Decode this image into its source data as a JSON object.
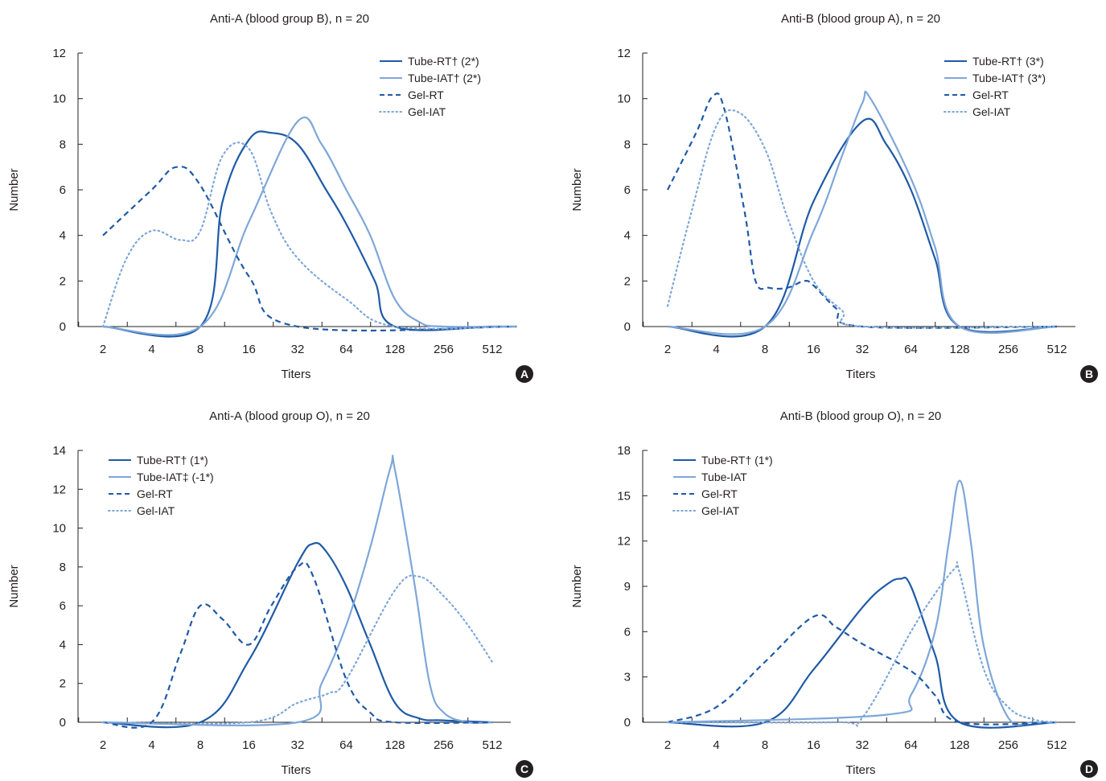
{
  "colors": {
    "dark_blue": "#1f5aa6",
    "light_blue": "#7ea7d8",
    "text": "#231f20",
    "badge": "#231f20"
  },
  "chart_data": [
    {
      "type": "line",
      "panel": "A",
      "title": "Anti-A (blood group B), n = 20",
      "xlabel": "Titers",
      "ylabel": "Number",
      "x_categories": [
        "2",
        "4",
        "8",
        "16",
        "32",
        "64",
        "128",
        "256",
        "512"
      ],
      "y_ticks": [
        "0",
        "2",
        "4",
        "6",
        "8",
        "10",
        "12"
      ],
      "ylim": [
        0,
        12
      ],
      "legend_position": "top-right",
      "series": [
        {
          "name": "Tube-RT† (2*)",
          "color": "#1f5aa6",
          "dash": "solid",
          "points": [
            [
              2,
              0
            ],
            [
              8,
              0
            ],
            [
              11,
              5.5
            ],
            [
              16,
              8.2
            ],
            [
              22,
              8.5
            ],
            [
              32,
              8
            ],
            [
              48,
              6
            ],
            [
              64,
              4.5
            ],
            [
              96,
              2
            ],
            [
              128,
              0
            ],
            [
              512,
              0
            ],
            [
              724,
              0
            ]
          ]
        },
        {
          "name": "Tube-IAT† (2*)",
          "color": "#7ea7d8",
          "dash": "solid",
          "points": [
            [
              2,
              0
            ],
            [
              8,
              0
            ],
            [
              16,
              4.6
            ],
            [
              32,
              9
            ],
            [
              45,
              8
            ],
            [
              64,
              6
            ],
            [
              90,
              4
            ],
            [
              128,
              1.2
            ],
            [
              181,
              0.2
            ],
            [
              256,
              0
            ],
            [
              724,
              0
            ]
          ]
        },
        {
          "name": "Gel-RT",
          "color": "#1f5aa6",
          "dash": "dashed",
          "points": [
            [
              2,
              4
            ],
            [
              4,
              6
            ],
            [
              5.7,
              7
            ],
            [
              8,
              6.2
            ],
            [
              16,
              2.2
            ],
            [
              32,
              0
            ],
            [
              724,
              0
            ]
          ]
        },
        {
          "name": "Gel-IAT",
          "color": "#7ea7d8",
          "dash": "dotted",
          "points": [
            [
              2,
              0
            ],
            [
              2.8,
              3
            ],
            [
              4,
              4.2
            ],
            [
              6,
              3.8
            ],
            [
              8,
              4.2
            ],
            [
              11,
              7.5
            ],
            [
              16,
              7.8
            ],
            [
              22,
              5
            ],
            [
              32,
              3
            ],
            [
              64,
              1.2
            ],
            [
              128,
              0
            ],
            [
              724,
              0
            ]
          ]
        }
      ]
    },
    {
      "type": "line",
      "panel": "B",
      "title": "Anti-B (blood group A), n = 20",
      "xlabel": "Titers",
      "ylabel": "Number",
      "x_categories": [
        "2",
        "4",
        "8",
        "16",
        "32",
        "64",
        "128",
        "256",
        "512"
      ],
      "y_ticks": [
        "0",
        "2",
        "4",
        "6",
        "8",
        "10",
        "12"
      ],
      "ylim": [
        0,
        12
      ],
      "legend_position": "top-right",
      "series": [
        {
          "name": "Tube-RT† (3*)",
          "color": "#1f5aa6",
          "dash": "solid",
          "points": [
            [
              2,
              0
            ],
            [
              8,
              0
            ],
            [
              16,
              5.5
            ],
            [
              32,
              9
            ],
            [
              45,
              8
            ],
            [
              64,
              6
            ],
            [
              90,
              3
            ],
            [
              128,
              0
            ],
            [
              512,
              0
            ]
          ]
        },
        {
          "name": "Tube-IAT† (3*)",
          "color": "#7ea7d8",
          "dash": "solid",
          "points": [
            [
              2,
              0
            ],
            [
              8,
              0
            ],
            [
              16,
              4.2
            ],
            [
              24,
              7.5
            ],
            [
              32,
              9.8
            ],
            [
              36,
              10
            ],
            [
              64,
              6.5
            ],
            [
              90,
              3.5
            ],
            [
              128,
              0
            ],
            [
              512,
              0
            ]
          ]
        },
        {
          "name": "Gel-RT",
          "color": "#1f5aa6",
          "dash": "dashed",
          "points": [
            [
              2,
              6
            ],
            [
              3,
              8.5
            ],
            [
              3.8,
              10.1
            ],
            [
              4.5,
              9.5
            ],
            [
              6,
              5
            ],
            [
              7,
              2
            ],
            [
              8.5,
              1.7
            ],
            [
              11,
              1.7
            ],
            [
              14,
              2
            ],
            [
              16,
              1.8
            ],
            [
              22,
              0.8
            ],
            [
              32,
              0
            ],
            [
              512,
              0
            ]
          ]
        },
        {
          "name": "Gel-IAT",
          "color": "#7ea7d8",
          "dash": "dotted",
          "points": [
            [
              2,
              0.9
            ],
            [
              2.8,
              5
            ],
            [
              4,
              8.8
            ],
            [
              5.5,
              9.4
            ],
            [
              8,
              7.8
            ],
            [
              11,
              4.8
            ],
            [
              16,
              2
            ],
            [
              24,
              0.7
            ],
            [
              32,
              0
            ],
            [
              512,
              0
            ]
          ]
        }
      ]
    },
    {
      "type": "line",
      "panel": "C",
      "title": "Anti-A (blood group O), n = 20",
      "xlabel": "Titers",
      "ylabel": "Number",
      "x_categories": [
        "2",
        "4",
        "8",
        "16",
        "32",
        "64",
        "128",
        "256",
        "512"
      ],
      "y_ticks": [
        "0",
        "2",
        "4",
        "6",
        "8",
        "10",
        "12",
        "14"
      ],
      "ylim": [
        0,
        14
      ],
      "legend_position": "top-left",
      "series": [
        {
          "name": "Tube-RT† (1*)",
          "color": "#1f5aa6",
          "dash": "solid",
          "points": [
            [
              2,
              0
            ],
            [
              8,
              0
            ],
            [
              16,
              3.2
            ],
            [
              32,
              8.2
            ],
            [
              40,
              9.2
            ],
            [
              48,
              8.8
            ],
            [
              64,
              7
            ],
            [
              90,
              4
            ],
            [
              128,
              1
            ],
            [
              181,
              0.2
            ],
            [
              256,
              0.1
            ],
            [
              512,
              0
            ]
          ]
        },
        {
          "name": "Tube-IAT‡ (-1*)",
          "color": "#7ea7d8",
          "dash": "solid",
          "points": [
            [
              2,
              0
            ],
            [
              32,
              0
            ],
            [
              45,
              2
            ],
            [
              64,
              5
            ],
            [
              90,
              9
            ],
            [
              120,
              13.1
            ],
            [
              128,
              13
            ],
            [
              170,
              7
            ],
            [
              210,
              2
            ],
            [
              256,
              0.5
            ],
            [
              362,
              0
            ],
            [
              512,
              0
            ]
          ]
        },
        {
          "name": "Gel-RT",
          "color": "#1f5aa6",
          "dash": "dashed",
          "points": [
            [
              2,
              0
            ],
            [
              4,
              0
            ],
            [
              6,
              3.5
            ],
            [
              8,
              6
            ],
            [
              11,
              5.3
            ],
            [
              16,
              4
            ],
            [
              22,
              6
            ],
            [
              32,
              8
            ],
            [
              40,
              7.5
            ],
            [
              64,
              2.2
            ],
            [
              90,
              0.5
            ],
            [
              128,
              0
            ],
            [
              512,
              0
            ]
          ]
        },
        {
          "name": "Gel-IAT",
          "color": "#7ea7d8",
          "dash": "dotted",
          "points": [
            [
              2,
              0
            ],
            [
              16,
              0
            ],
            [
              32,
              1
            ],
            [
              50,
              1.5
            ],
            [
              64,
              2.2
            ],
            [
              128,
              6.8
            ],
            [
              181,
              7.5
            ],
            [
              256,
              6.5
            ],
            [
              362,
              5
            ],
            [
              512,
              3.1
            ]
          ]
        }
      ]
    },
    {
      "type": "line",
      "panel": "D",
      "title": "Anti-B (blood group O), n = 20",
      "xlabel": "Titers",
      "ylabel": "Number",
      "x_categories": [
        "2",
        "4",
        "8",
        "16",
        "32",
        "64",
        "128",
        "256",
        "512"
      ],
      "y_ticks": [
        "0",
        "3",
        "6",
        "9",
        "12",
        "15",
        "18"
      ],
      "ylim": [
        0,
        18
      ],
      "legend_position": "top-left",
      "series": [
        {
          "name": "Tube-RT† (1*)",
          "color": "#1f5aa6",
          "dash": "solid",
          "points": [
            [
              2,
              0
            ],
            [
              8,
              0
            ],
            [
              16,
              3.5
            ],
            [
              32,
              7.6
            ],
            [
              45,
              9.1
            ],
            [
              55,
              9.5
            ],
            [
              64,
              9
            ],
            [
              90,
              4.5
            ],
            [
              128,
              0
            ],
            [
              512,
              0
            ]
          ]
        },
        {
          "name": "Tube-IAT",
          "color": "#7ea7d8",
          "dash": "solid",
          "points": [
            [
              2,
              0
            ],
            [
              45,
              0.5
            ],
            [
              64,
              1.8
            ],
            [
              90,
              6
            ],
            [
              110,
              12
            ],
            [
              128,
              16
            ],
            [
              150,
              12
            ],
            [
              181,
              5
            ],
            [
              256,
              0.3
            ],
            [
              362,
              0
            ],
            [
              512,
              0
            ]
          ]
        },
        {
          "name": "Gel-RT",
          "color": "#1f5aa6",
          "dash": "dashed",
          "points": [
            [
              2,
              0
            ],
            [
              4,
              1
            ],
            [
              8,
              4
            ],
            [
              16,
              7
            ],
            [
              22,
              6.3
            ],
            [
              32,
              5.2
            ],
            [
              64,
              3.4
            ],
            [
              90,
              1.8
            ],
            [
              128,
              0
            ],
            [
              512,
              0
            ]
          ]
        },
        {
          "name": "Gel-IAT",
          "color": "#7ea7d8",
          "dash": "dotted",
          "points": [
            [
              2,
              0
            ],
            [
              22,
              0
            ],
            [
              32,
              0.3
            ],
            [
              64,
              6
            ],
            [
              90,
              8.5
            ],
            [
              120,
              10.2
            ],
            [
              128,
              9.9
            ],
            [
              181,
              3.5
            ],
            [
              256,
              1
            ],
            [
              362,
              0.2
            ],
            [
              512,
              0
            ]
          ]
        }
      ]
    }
  ]
}
